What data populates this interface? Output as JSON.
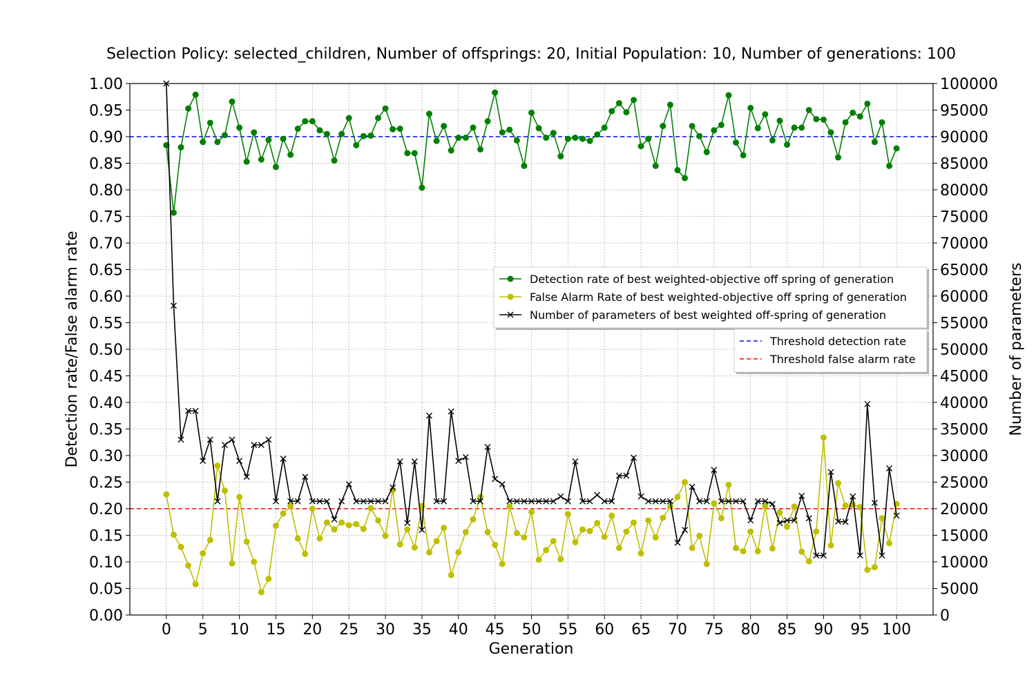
{
  "chart_data": {
    "type": "line",
    "title": "Selection Policy: selected_children, Number of offsprings: 20, Initial Population: 10, Number of generations: 100",
    "xlabel": "Generation",
    "ylabel_left": "Detection rate/False alarm rate",
    "ylabel_right": "Number of parameters",
    "xlim": [
      -5,
      105
    ],
    "ylim_left": [
      0,
      1
    ],
    "ylim_right": [
      0,
      100000
    ],
    "xticks": [
      0,
      5,
      10,
      15,
      20,
      25,
      30,
      35,
      40,
      45,
      50,
      55,
      60,
      65,
      70,
      75,
      80,
      85,
      90,
      95,
      100
    ],
    "yticks_left": [
      "0.00",
      "0.05",
      "0.10",
      "0.15",
      "0.20",
      "0.25",
      "0.30",
      "0.35",
      "0.40",
      "0.45",
      "0.50",
      "0.55",
      "0.60",
      "0.65",
      "0.70",
      "0.75",
      "0.80",
      "0.85",
      "0.90",
      "0.95",
      "1.00"
    ],
    "yticks_right": [
      "0",
      "5000",
      "10000",
      "15000",
      "20000",
      "25000",
      "30000",
      "35000",
      "40000",
      "45000",
      "50000",
      "55000",
      "60000",
      "65000",
      "70000",
      "75000",
      "80000",
      "85000",
      "90000",
      "95000",
      "100000"
    ],
    "grid": true,
    "thresholds": [
      {
        "name": "Threshold detection rate",
        "value": 0.9,
        "color": "#0000ff",
        "style": "dashed"
      },
      {
        "name": "Threshold false alarm rate",
        "value": 0.2,
        "color": "#ff0000",
        "style": "dashed"
      }
    ],
    "series": [
      {
        "name": "Detection rate of best weighted-objective off spring of generation",
        "axis": "left",
        "color": "#008000",
        "marker": "circle",
        "values": [
          0.884,
          0.757,
          0.88,
          0.953,
          0.979,
          0.89,
          0.926,
          0.89,
          0.903,
          0.966,
          0.917,
          0.853,
          0.908,
          0.857,
          0.894,
          0.843,
          0.896,
          0.866,
          0.915,
          0.929,
          0.929,
          0.912,
          0.905,
          0.855,
          0.905,
          0.935,
          0.884,
          0.901,
          0.902,
          0.935,
          0.953,
          0.914,
          0.915,
          0.869,
          0.869,
          0.804,
          0.943,
          0.892,
          0.92,
          0.874,
          0.898,
          0.898,
          0.917,
          0.876,
          0.929,
          0.983,
          0.908,
          0.913,
          0.893,
          0.845,
          0.945,
          0.916,
          0.898,
          0.907,
          0.863,
          0.896,
          0.898,
          0.896,
          0.892,
          0.904,
          0.917,
          0.948,
          0.963,
          0.946,
          0.969,
          0.882,
          0.896,
          0.845,
          0.92,
          0.96,
          0.837,
          0.822,
          0.92,
          0.901,
          0.871,
          0.912,
          0.922,
          0.978,
          0.889,
          0.865,
          0.954,
          0.916,
          0.942,
          0.893,
          0.93,
          0.885,
          0.917,
          0.917,
          0.95,
          0.933,
          0.932,
          0.908,
          0.861,
          0.927,
          0.945,
          0.938,
          0.962,
          0.89,
          0.927,
          0.845,
          0.878
        ]
      },
      {
        "name": "False Alarm Rate of best weighted-objective off spring of generation",
        "axis": "left",
        "color": "#bfbf00",
        "marker": "circle",
        "values": [
          0.227,
          0.151,
          0.128,
          0.093,
          0.058,
          0.116,
          0.141,
          0.281,
          0.234,
          0.097,
          0.222,
          0.138,
          0.1,
          0.043,
          0.068,
          0.168,
          0.191,
          0.205,
          0.144,
          0.115,
          0.2,
          0.144,
          0.174,
          0.161,
          0.174,
          0.169,
          0.171,
          0.162,
          0.201,
          0.178,
          0.149,
          0.235,
          0.133,
          0.161,
          0.127,
          0.205,
          0.118,
          0.139,
          0.164,
          0.075,
          0.118,
          0.156,
          0.18,
          0.222,
          0.156,
          0.132,
          0.096,
          0.204,
          0.154,
          0.146,
          0.194,
          0.104,
          0.122,
          0.139,
          0.105,
          0.19,
          0.137,
          0.161,
          0.158,
          0.173,
          0.147,
          0.187,
          0.126,
          0.157,
          0.174,
          0.116,
          0.178,
          0.146,
          0.183,
          0.204,
          0.222,
          0.25,
          0.126,
          0.149,
          0.096,
          0.21,
          0.182,
          0.245,
          0.126,
          0.12,
          0.157,
          0.12,
          0.205,
          0.125,
          0.193,
          0.166,
          0.204,
          0.119,
          0.101,
          0.157,
          0.334,
          0.131,
          0.248,
          0.206,
          0.207,
          0.203,
          0.085,
          0.09,
          0.182,
          0.135,
          0.209
        ]
      },
      {
        "name": "Number of parameters of best weighted off-spring of generation",
        "axis": "right",
        "color": "#000000",
        "marker": "x",
        "values": [
          100000,
          58200,
          33000,
          38400,
          38400,
          29000,
          33000,
          21400,
          32000,
          33000,
          29000,
          26000,
          32000,
          32000,
          33000,
          21400,
          29400,
          21400,
          21400,
          26000,
          21400,
          21400,
          21400,
          18000,
          21400,
          24600,
          21400,
          21400,
          21400,
          21400,
          21400,
          24000,
          28900,
          17300,
          28900,
          16000,
          37500,
          21400,
          21400,
          38300,
          29000,
          29700,
          21400,
          21400,
          31600,
          25600,
          24600,
          21400,
          21400,
          21400,
          21400,
          21400,
          21400,
          21400,
          22300,
          21400,
          28900,
          21400,
          21400,
          22600,
          21400,
          21400,
          26200,
          26200,
          29600,
          22300,
          21400,
          21400,
          21400,
          21400,
          13600,
          16000,
          24100,
          21400,
          21400,
          27300,
          21400,
          21400,
          21400,
          21400,
          17800,
          21400,
          21400,
          20900,
          17300,
          17800,
          17800,
          22400,
          18200,
          11200,
          11200,
          26900,
          17600,
          17500,
          22300,
          11200,
          39700,
          21100,
          11200,
          27600,
          18700
        ]
      }
    ],
    "legends": [
      {
        "placement": "center-right",
        "entries": [
          "Detection rate of best weighted-objective off spring of generation",
          "False Alarm Rate of best weighted-objective off spring of generation",
          "Number of parameters of best weighted off-spring of generation"
        ]
      },
      {
        "placement": "center-right",
        "entries": [
          "Threshold detection rate",
          "Threshold false alarm rate"
        ]
      }
    ]
  }
}
